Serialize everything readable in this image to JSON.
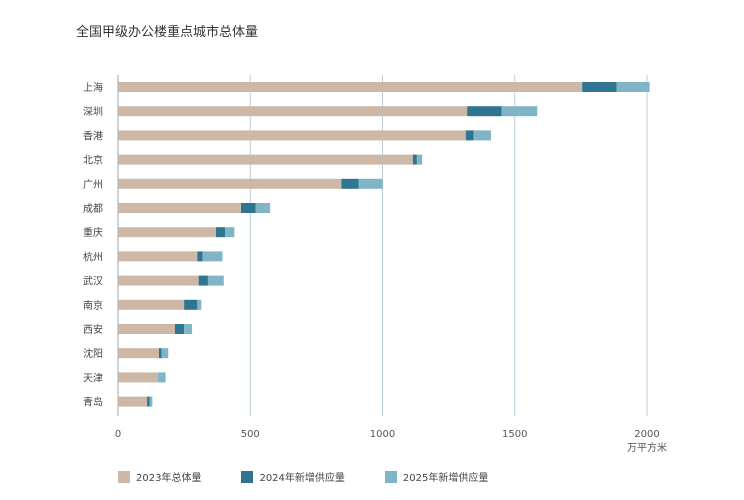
{
  "title": "全国甲级办公楼重点城市总体量",
  "chart_data": {
    "type": "bar",
    "orientation": "horizontal",
    "stacked": true,
    "title": "全国甲级办公楼重点城市总体量",
    "xunit": "万平方米",
    "xlim": [
      0,
      2000
    ],
    "xticks": [
      0,
      500,
      1000,
      1500,
      2000
    ],
    "grid": "vertical",
    "legend_position": "bottom",
    "categories": [
      "上海",
      "深圳",
      "香港",
      "北京",
      "广州",
      "成都",
      "重庆",
      "杭州",
      "武汉",
      "南京",
      "西安",
      "沈阳",
      "天津",
      "青岛"
    ],
    "series": [
      {
        "name": "2023年总体量",
        "color": "#cdb8a7",
        "values": [
          1755,
          1320,
          1315,
          1115,
          845,
          465,
          370,
          300,
          305,
          250,
          215,
          155,
          150,
          110
        ]
      },
      {
        "name": "2024年新增供应量",
        "color": "#2f7591",
        "values": [
          130,
          130,
          30,
          15,
          65,
          55,
          35,
          20,
          35,
          50,
          35,
          10,
          0,
          10
        ]
      },
      {
        "name": "2025年新增供应量",
        "color": "#7fb5c6",
        "values": [
          125,
          135,
          65,
          20,
          90,
          55,
          35,
          75,
          60,
          15,
          30,
          25,
          30,
          10
        ]
      }
    ]
  }
}
